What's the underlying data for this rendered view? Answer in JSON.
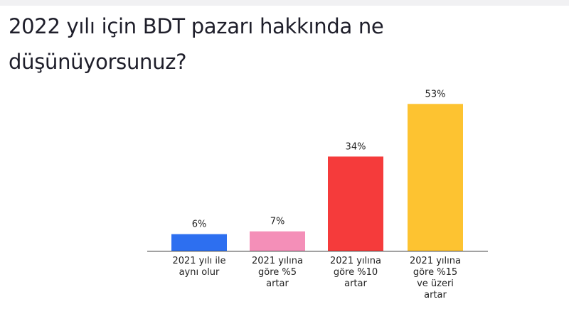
{
  "chart_data": {
    "type": "bar",
    "title": "2022 yılı için BDT pazarı hakkında ne düşünüyorsunuz?",
    "categories": [
      "2021 yılı ile\naynı olur",
      "2021 yılına\ngöre %5\nartar",
      "2021 yılına\ngöre %10\nartar",
      "2021 yılına\ngöre %15\nve üzeri\nartar"
    ],
    "values": [
      6,
      7,
      34,
      53
    ],
    "value_labels": [
      "6%",
      "7%",
      "34%",
      "53%"
    ],
    "colors": [
      "#2d6ff0",
      "#f48fb8",
      "#f53b3b",
      "#fdc331"
    ]
  }
}
